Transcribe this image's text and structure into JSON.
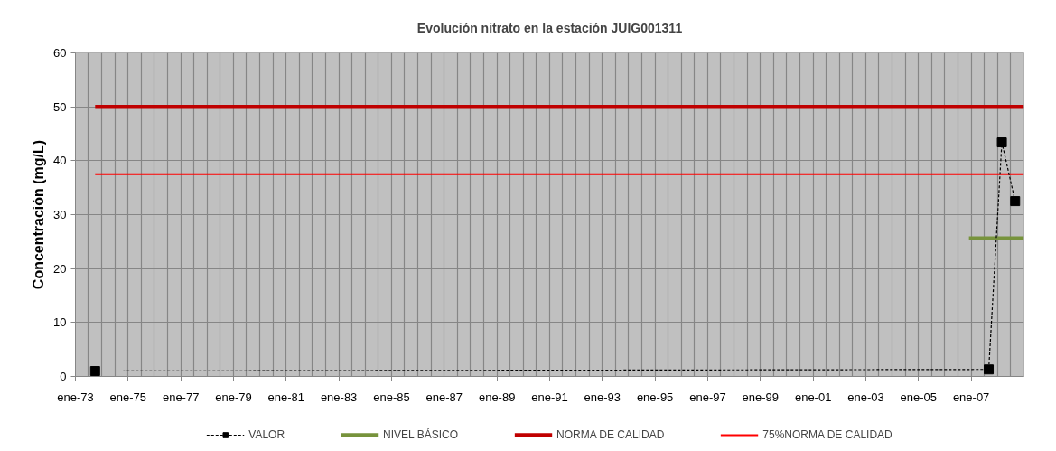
{
  "chart_data": {
    "type": "line",
    "title": "Evolución nitrato en la estación JUIG001311",
    "ylabel": "Concentración (mg/L)",
    "xlim": [
      "1973-01",
      "2009-01"
    ],
    "ylim": [
      0,
      60
    ],
    "yticks": [
      0,
      10,
      20,
      30,
      40,
      50,
      60
    ],
    "xticks": [
      {
        "value": "1973-01",
        "label": "ene-73"
      },
      {
        "value": "1973-07",
        "label": null
      },
      {
        "value": "1974-01",
        "label": null
      },
      {
        "value": "1974-07",
        "label": null
      },
      {
        "value": "1975-01",
        "label": "ene-75"
      },
      {
        "value": "1975-07",
        "label": null
      },
      {
        "value": "1976-01",
        "label": null
      },
      {
        "value": "1976-07",
        "label": null
      },
      {
        "value": "1977-01",
        "label": "ene-77"
      },
      {
        "value": "1977-07",
        "label": null
      },
      {
        "value": "1978-01",
        "label": null
      },
      {
        "value": "1978-07",
        "label": null
      },
      {
        "value": "1979-01",
        "label": "ene-79"
      },
      {
        "value": "1979-07",
        "label": null
      },
      {
        "value": "1980-01",
        "label": null
      },
      {
        "value": "1980-07",
        "label": null
      },
      {
        "value": "1981-01",
        "label": "ene-81"
      },
      {
        "value": "1981-07",
        "label": null
      },
      {
        "value": "1982-01",
        "label": null
      },
      {
        "value": "1982-07",
        "label": null
      },
      {
        "value": "1983-01",
        "label": "ene-83"
      },
      {
        "value": "1983-07",
        "label": null
      },
      {
        "value": "1984-01",
        "label": null
      },
      {
        "value": "1984-07",
        "label": null
      },
      {
        "value": "1985-01",
        "label": "ene-85"
      },
      {
        "value": "1985-07",
        "label": null
      },
      {
        "value": "1986-01",
        "label": null
      },
      {
        "value": "1986-07",
        "label": null
      },
      {
        "value": "1987-01",
        "label": "ene-87"
      },
      {
        "value": "1987-07",
        "label": null
      },
      {
        "value": "1988-01",
        "label": null
      },
      {
        "value": "1988-07",
        "label": null
      },
      {
        "value": "1989-01",
        "label": "ene-89"
      },
      {
        "value": "1989-07",
        "label": null
      },
      {
        "value": "1990-01",
        "label": null
      },
      {
        "value": "1990-07",
        "label": null
      },
      {
        "value": "1991-01",
        "label": "ene-91"
      },
      {
        "value": "1991-07",
        "label": null
      },
      {
        "value": "1992-01",
        "label": null
      },
      {
        "value": "1992-07",
        "label": null
      },
      {
        "value": "1993-01",
        "label": "ene-93"
      },
      {
        "value": "1993-07",
        "label": null
      },
      {
        "value": "1994-01",
        "label": null
      },
      {
        "value": "1994-07",
        "label": null
      },
      {
        "value": "1995-01",
        "label": "ene-95"
      },
      {
        "value": "1995-07",
        "label": null
      },
      {
        "value": "1996-01",
        "label": null
      },
      {
        "value": "1996-07",
        "label": null
      },
      {
        "value": "1997-01",
        "label": "ene-97"
      },
      {
        "value": "1997-07",
        "label": null
      },
      {
        "value": "1998-01",
        "label": null
      },
      {
        "value": "1998-07",
        "label": null
      },
      {
        "value": "1999-01",
        "label": "ene-99"
      },
      {
        "value": "1999-07",
        "label": null
      },
      {
        "value": "2000-01",
        "label": null
      },
      {
        "value": "2000-07",
        "label": null
      },
      {
        "value": "2001-01",
        "label": "ene-01"
      },
      {
        "value": "2001-07",
        "label": null
      },
      {
        "value": "2002-01",
        "label": null
      },
      {
        "value": "2002-07",
        "label": null
      },
      {
        "value": "2003-01",
        "label": "ene-03"
      },
      {
        "value": "2003-07",
        "label": null
      },
      {
        "value": "2004-01",
        "label": null
      },
      {
        "value": "2004-07",
        "label": null
      },
      {
        "value": "2005-01",
        "label": "ene-05"
      },
      {
        "value": "2005-07",
        "label": null
      },
      {
        "value": "2006-01",
        "label": null
      },
      {
        "value": "2006-07",
        "label": null
      },
      {
        "value": "2007-01",
        "label": "ene-07"
      },
      {
        "value": "2007-07",
        "label": null
      },
      {
        "value": "2008-01",
        "label": null
      },
      {
        "value": "2008-07",
        "label": null
      }
    ],
    "series": [
      {
        "name": "VALOR",
        "color": "#000000",
        "x": [
          "1973-10",
          "2007-09",
          "2008-03",
          "2008-09"
        ],
        "values": [
          1,
          1.3,
          43.4,
          32.5
        ],
        "line_style": "dashed",
        "marker": "square"
      },
      {
        "name": "NIVEL BÁSICO",
        "color": "#77933c",
        "x": [
          "2006-12",
          "2009-01"
        ],
        "values": [
          25.6,
          25.6
        ]
      },
      {
        "name": "NORMA DE CALIDAD",
        "color": "#c00000",
        "x": [
          "1973-10",
          "2009-01"
        ],
        "values": [
          50,
          50
        ]
      },
      {
        "name": "75%NORMA DE CALIDAD",
        "color": "#ff0000",
        "x": [
          "1973-10",
          "2009-01"
        ],
        "values": [
          37.5,
          37.5
        ]
      }
    ],
    "grid": true,
    "legend": "bottom",
    "line_style": "solid"
  }
}
